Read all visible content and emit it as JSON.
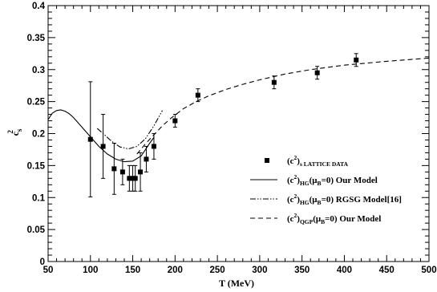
{
  "chart_data": {
    "type": "scatter",
    "xlabel": "T (MeV)",
    "ylabel": {
      "base": "c",
      "sub": "s",
      "sup": "2"
    },
    "xlim": [
      50,
      500
    ],
    "ylim": [
      0,
      0.4
    ],
    "x_ticks": [
      50,
      100,
      150,
      200,
      250,
      300,
      350,
      400,
      450,
      500
    ],
    "y_ticks": [
      0,
      0.05,
      0.1,
      0.15,
      0.2,
      0.25,
      0.3,
      0.35,
      0.4
    ],
    "x_tick_labels": [
      "50",
      "100",
      "150",
      "200",
      "250",
      "300",
      "350",
      "400",
      "450",
      "500"
    ],
    "y_tick_labels": [
      "0",
      "0.05",
      "0.1",
      "0.15",
      "0.2",
      "0.25",
      "0.3",
      "0.35",
      "0.4"
    ],
    "legend_position": "lower-right",
    "series": [
      {
        "key": "lattice",
        "style": "points",
        "legend": {
          "main": "(c",
          "sup": "2",
          "close": ")",
          "sub": "s LATTICE DATA",
          "tail": ""
        },
        "points": [
          {
            "x": 100,
            "y": 0.191,
            "err": 0.09
          },
          {
            "x": 115,
            "y": 0.18,
            "err": 0.05
          },
          {
            "x": 128,
            "y": 0.145,
            "err": 0.04
          },
          {
            "x": 138,
            "y": 0.14,
            "err": 0.02
          },
          {
            "x": 146,
            "y": 0.13,
            "err": 0.02
          },
          {
            "x": 150,
            "y": 0.13,
            "err": 0.02
          },
          {
            "x": 153,
            "y": 0.13,
            "err": 0.02
          },
          {
            "x": 159,
            "y": 0.14,
            "err": 0.03
          },
          {
            "x": 166,
            "y": 0.16,
            "err": 0.02
          },
          {
            "x": 175,
            "y": 0.18,
            "err": 0.02
          },
          {
            "x": 200,
            "y": 0.22,
            "err": 0.01
          },
          {
            "x": 227,
            "y": 0.26,
            "err": 0.01
          },
          {
            "x": 317,
            "y": 0.28,
            "err": 0.01
          },
          {
            "x": 368,
            "y": 0.295,
            "err": 0.01
          },
          {
            "x": 414,
            "y": 0.315,
            "err": 0.01
          }
        ]
      },
      {
        "key": "hg-our",
        "style": "solid",
        "legend": {
          "main": "(c",
          "sup": "2",
          "close": ")",
          "sub": "HG",
          "tail": "(μ",
          "tail_sub": "B",
          "tail_end": "=0) Our Model"
        },
        "x": [
          50,
          55,
          60,
          65,
          70,
          75,
          80,
          90,
          100,
          110,
          120,
          130,
          140,
          150,
          160,
          165,
          170,
          175
        ],
        "y": [
          0.222,
          0.232,
          0.236,
          0.237,
          0.235,
          0.231,
          0.225,
          0.21,
          0.195,
          0.18,
          0.168,
          0.16,
          0.156,
          0.157,
          0.165,
          0.175,
          0.185,
          0.194
        ]
      },
      {
        "key": "hg-rgsg",
        "style": "dashdotdot",
        "legend": {
          "main": "(c",
          "sup": "2",
          "close": ")",
          "sub": "HG",
          "tail": "(μ",
          "tail_sub": "B",
          "tail_end": "=0) RGSG Model[16]"
        },
        "x": [
          108,
          115,
          125,
          135,
          145,
          155,
          165,
          175,
          185
        ],
        "y": [
          0.208,
          0.2,
          0.188,
          0.179,
          0.176,
          0.18,
          0.192,
          0.212,
          0.236
        ]
      },
      {
        "key": "qgp-our",
        "style": "dashed",
        "legend": {
          "main": "(c",
          "sup": "2",
          "close": ")",
          "sub": "QGP",
          "tail": "(μ",
          "tail_sub": "B",
          "tail_end": "=0) Our Model"
        },
        "x": [
          155,
          165,
          175,
          185,
          195,
          210,
          225,
          240,
          260,
          280,
          300,
          330,
          360,
          400,
          450,
          500
        ],
        "y": [
          0.168,
          0.184,
          0.198,
          0.212,
          0.224,
          0.239,
          0.25,
          0.259,
          0.269,
          0.277,
          0.284,
          0.293,
          0.3,
          0.307,
          0.313,
          0.318
        ]
      }
    ]
  }
}
